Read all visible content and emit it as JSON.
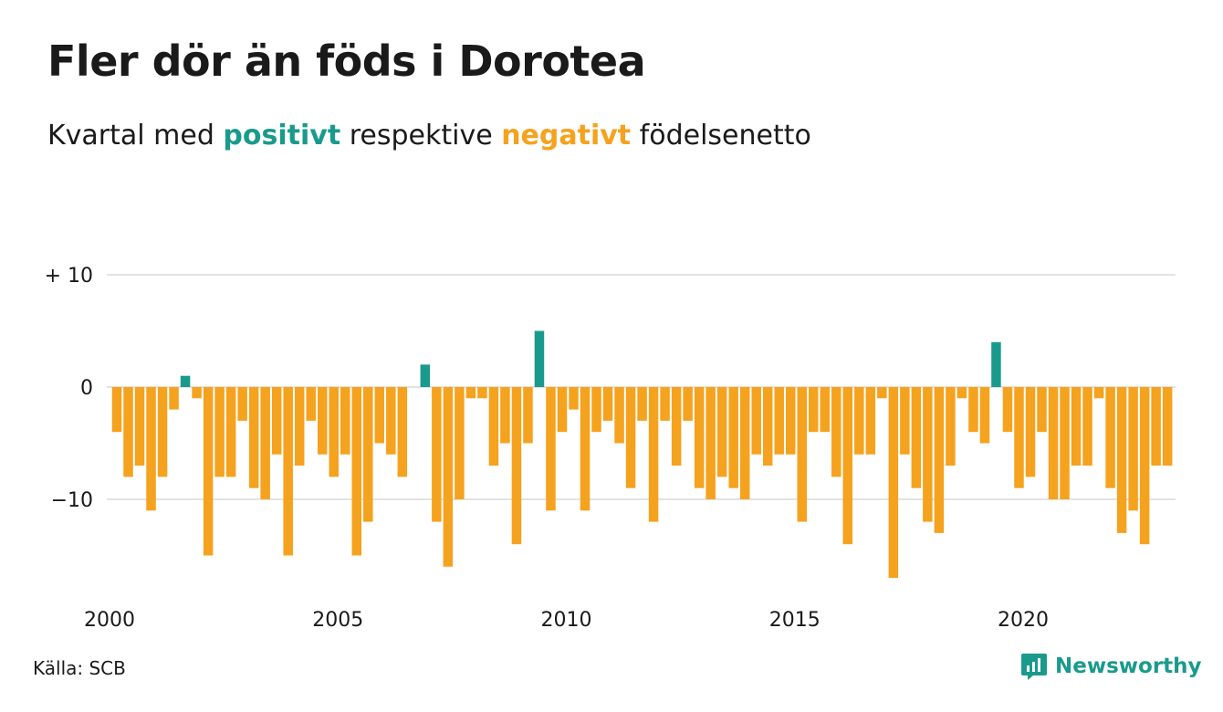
{
  "header": {
    "title": "Fler dör än föds i Dorotea",
    "subtitle_pre": "Kvartal med ",
    "subtitle_pos": "positivt",
    "subtitle_mid": " respektive ",
    "subtitle_neg": "negativt",
    "subtitle_post": " födelsenetto"
  },
  "footer": {
    "source": "Källa: SCB",
    "brand": "Newsworthy"
  },
  "colors": {
    "positive": "#1a9a8c",
    "negative": "#f5a21e",
    "grid": "#e2e2e2",
    "brand": "#1a9a8c"
  },
  "chart_data": {
    "type": "bar",
    "x_start": "2000 Q1",
    "ylim": [
      -17,
      10
    ],
    "yticks": [
      {
        "value": 10,
        "label": "+ 10"
      },
      {
        "value": 0,
        "label": "0"
      },
      {
        "value": -10,
        "label": "−10"
      }
    ],
    "xticks": [
      {
        "value": 2000,
        "label": "2000"
      },
      {
        "value": 2005,
        "label": "2005"
      },
      {
        "value": 2010,
        "label": "2010"
      },
      {
        "value": 2015,
        "label": "2015"
      },
      {
        "value": 2020,
        "label": "2020"
      }
    ],
    "values": [
      -4,
      -8,
      -7,
      -11,
      -8,
      -2,
      1,
      -1,
      -15,
      -8,
      -8,
      -3,
      -9,
      -10,
      -6,
      -15,
      -7,
      -3,
      -6,
      -8,
      -6,
      -15,
      -12,
      -5,
      -6,
      -8,
      0,
      2,
      -12,
      -16,
      -10,
      -1,
      -1,
      -7,
      -5,
      -14,
      -5,
      5,
      -11,
      -4,
      -2,
      -11,
      -4,
      -3,
      -5,
      -9,
      -3,
      -12,
      -3,
      -7,
      -3,
      -9,
      -10,
      -8,
      -9,
      -10,
      -6,
      -7,
      -6,
      -6,
      -12,
      -4,
      -4,
      -8,
      -14,
      -6,
      -6,
      -1,
      -17,
      -6,
      -9,
      -12,
      -13,
      -7,
      -1,
      -4,
      -5,
      4,
      -4,
      -9,
      -8,
      -4,
      -10,
      -10,
      -7,
      -7,
      -1,
      -9,
      -13,
      -11,
      -14,
      -7,
      -7
    ]
  }
}
